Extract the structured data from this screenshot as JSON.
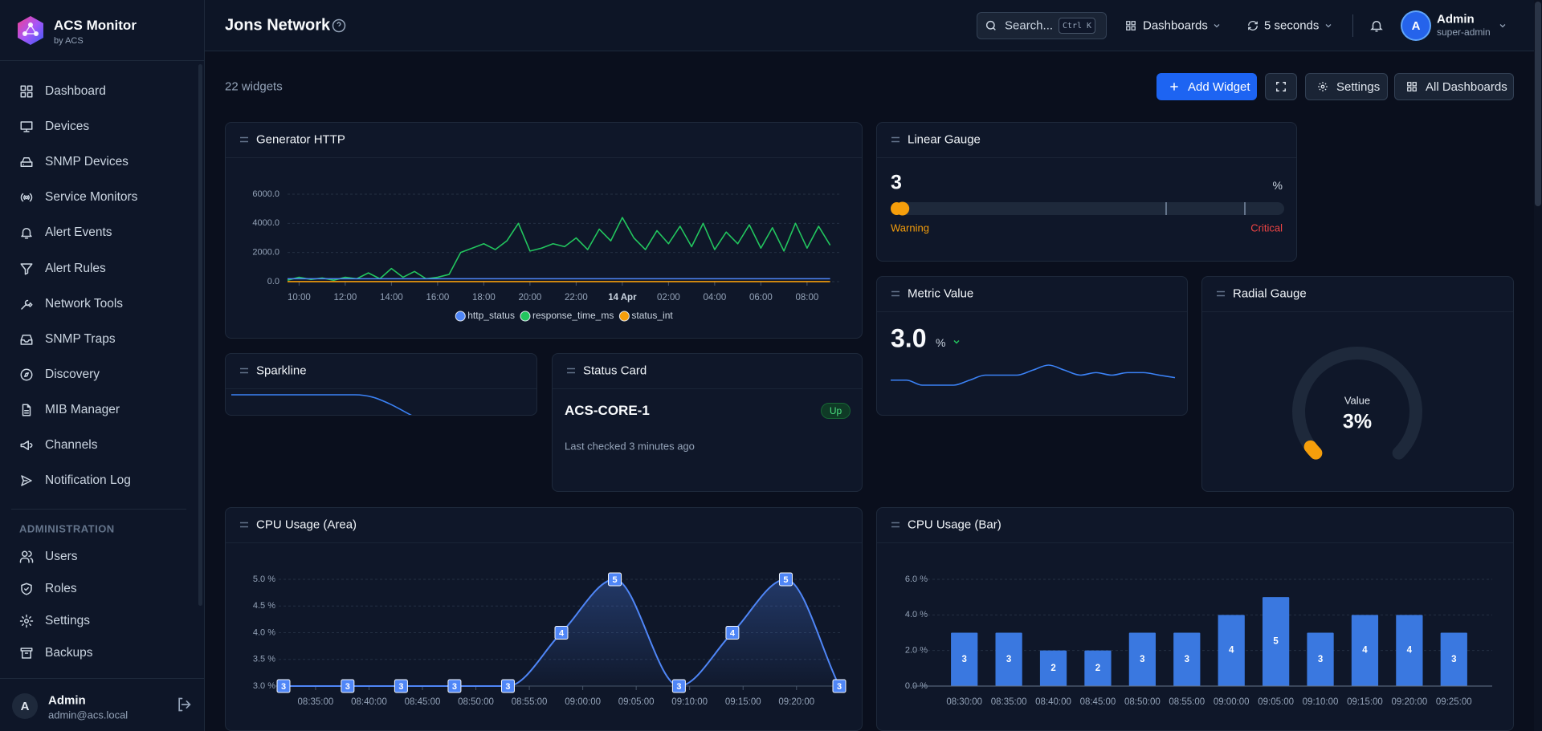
{
  "sidebar": {
    "brand": "ACS Monitor",
    "brand_sub": "by ACS",
    "nav": [
      "Dashboard",
      "Devices",
      "SNMP Devices",
      "Service Monitors",
      "Alert Events",
      "Alert Rules",
      "Network Tools",
      "SNMP Traps",
      "Discovery",
      "MIB Manager",
      "Channels",
      "Notification Log"
    ],
    "admin_heading": "ADMINISTRATION",
    "admin_nav": [
      "Users",
      "Roles",
      "Settings",
      "Backups"
    ],
    "user": {
      "initial": "A",
      "name": "Admin",
      "email": "admin@acs.local"
    }
  },
  "header": {
    "title": "Jons Network",
    "search": "Search...",
    "shortcut": "Ctrl K",
    "dashboards": "Dashboards",
    "refresh": "5 seconds",
    "user": {
      "initial": "A",
      "name": "Admin",
      "role": "super-admin"
    }
  },
  "toolbar": {
    "count": "22 widgets",
    "add": "Add Widget",
    "settings": "Settings",
    "all": "All Dashboards"
  },
  "chart_data": [
    {
      "type": "line",
      "title": "Generator HTTP",
      "x": [
        9.5,
        10,
        10.5,
        11,
        11.5,
        12,
        12.5,
        13,
        13.5,
        14,
        14.5,
        15,
        15.5,
        16,
        16.5,
        17,
        17.5,
        18,
        18.5,
        19,
        19.5,
        20,
        20.5,
        21,
        21.5,
        22,
        22.5,
        23,
        23.5,
        24,
        24.5,
        25,
        25.5,
        26,
        26.5,
        27,
        27.5,
        28,
        28.5,
        29,
        29.5,
        30,
        30.5,
        31,
        31.5,
        32,
        32.5,
        33
      ],
      "series": [
        {
          "name": "http_status",
          "color": "#4f86f7",
          "values": [
            200,
            200,
            200,
            200,
            200,
            200,
            200,
            200,
            200,
            200,
            200,
            200,
            200,
            200,
            200,
            200,
            200,
            200,
            200,
            200,
            200,
            200,
            200,
            200,
            200,
            200,
            200,
            200,
            200,
            200,
            200,
            200,
            200,
            200,
            200,
            200,
            200,
            200,
            200,
            200,
            200,
            200,
            200,
            200,
            200,
            200,
            200,
            200
          ]
        },
        {
          "name": "response_time_ms",
          "color": "#22c55e",
          "values": [
            100,
            300,
            150,
            250,
            100,
            300,
            200,
            600,
            200,
            900,
            300,
            700,
            200,
            300,
            500,
            2000,
            2300,
            2600,
            2200,
            2800,
            4000,
            2100,
            2300,
            2600,
            2400,
            3000,
            2200,
            3600,
            2800,
            4400,
            3000,
            2200,
            3500,
            2600,
            3800,
            2400,
            4000,
            2200,
            3400,
            2600,
            3900,
            2300,
            3700,
            2100,
            4000,
            2300,
            3800,
            2500
          ]
        },
        {
          "name": "status_int",
          "color": "#f59e0b",
          "values": [
            1,
            1,
            1,
            1,
            1,
            1,
            1,
            1,
            1,
            1,
            1,
            1,
            1,
            1,
            1,
            1,
            1,
            1,
            1,
            1,
            1,
            1,
            1,
            1,
            1,
            1,
            1,
            1,
            1,
            1,
            1,
            1,
            1,
            1,
            1,
            1,
            1,
            1,
            1,
            1,
            1,
            1,
            1,
            1,
            1,
            1,
            1,
            1
          ]
        }
      ],
      "xlim": [
        9.5,
        33.5
      ],
      "xticks": [
        {
          "value": 10,
          "label": "10:00"
        },
        {
          "value": 12,
          "label": "12:00"
        },
        {
          "value": 14,
          "label": "14:00"
        },
        {
          "value": 16,
          "label": "16:00"
        },
        {
          "value": 18,
          "label": "18:00"
        },
        {
          "value": 20,
          "label": "20:00"
        },
        {
          "value": 22,
          "label": "22:00"
        },
        {
          "value": 24,
          "label": "14 Apr"
        },
        {
          "value": 26,
          "label": "02:00"
        },
        {
          "value": 28,
          "label": "04:00"
        },
        {
          "value": 30,
          "label": "06:00"
        },
        {
          "value": 32,
          "label": "08:00"
        }
      ],
      "ylim": [
        0,
        6000
      ],
      "yticks": [
        {
          "value": 0,
          "label": "0.0"
        },
        {
          "value": 2000,
          "label": "2000.0"
        },
        {
          "value": 4000,
          "label": "4000.0"
        },
        {
          "value": 6000,
          "label": "6000.0"
        }
      ],
      "grid": true,
      "legend": "bottom"
    },
    {
      "type": "area",
      "title": "CPU Usage (Area)",
      "x": [
        32,
        38,
        43,
        48,
        53,
        58,
        63,
        69,
        74,
        79,
        84
      ],
      "values": [
        3,
        3,
        3,
        3,
        3,
        4,
        5,
        3,
        4,
        5,
        3
      ],
      "color": "#4f86f7",
      "xlim": [
        32,
        84
      ],
      "xticks": [
        {
          "value": 35,
          "label": "08:35:00"
        },
        {
          "value": 40,
          "label": "08:40:00"
        },
        {
          "value": 45,
          "label": "08:45:00"
        },
        {
          "value": 50,
          "label": "08:50:00"
        },
        {
          "value": 55,
          "label": "08:55:00"
        },
        {
          "value": 60,
          "label": "09:00:00"
        },
        {
          "value": 65,
          "label": "09:05:00"
        },
        {
          "value": 70,
          "label": "09:10:00"
        },
        {
          "value": 75,
          "label": "09:15:00"
        },
        {
          "value": 80,
          "label": "09:20:00"
        }
      ],
      "ylim": [
        3,
        5
      ],
      "yticks": [
        {
          "value": 3,
          "label": "3.0 %"
        },
        {
          "value": 3.5,
          "label": "3.5 %"
        },
        {
          "value": 4,
          "label": "4.0 %"
        },
        {
          "value": 4.5,
          "label": "4.5 %"
        },
        {
          "value": 5,
          "label": "5.0 %"
        }
      ],
      "grid": true
    },
    {
      "type": "bar",
      "title": "CPU Usage (Bar)",
      "categories": [
        "08:30:00",
        "08:35:00",
        "08:40:00",
        "08:45:00",
        "08:50:00",
        "08:55:00",
        "09:00:00",
        "09:05:00",
        "09:10:00",
        "09:15:00",
        "09:20:00",
        "09:25:00"
      ],
      "values": [
        3,
        3,
        2,
        2,
        3,
        3,
        4,
        5,
        3,
        4,
        4,
        3
      ],
      "color": "#3a78e0",
      "ylim": [
        0,
        6
      ],
      "yticks": [
        {
          "value": 0,
          "label": "0.0 %"
        },
        {
          "value": 2,
          "label": "2.0 %"
        },
        {
          "value": 4,
          "label": "4.0 %"
        },
        {
          "value": 6,
          "label": "6.0 %"
        }
      ],
      "grid": true
    }
  ],
  "linear_gauge": {
    "title": "Linear Gauge",
    "value": 3,
    "unit": "%",
    "min": 0,
    "max": 100,
    "thresholds": [
      70,
      90
    ],
    "low_label": "Warning",
    "high_label": "Critical"
  },
  "metric": {
    "title": "Metric Value",
    "value": "3.0",
    "unit": "%",
    "history": [
      2.9,
      2.9,
      2.8,
      2.8,
      2.8,
      2.9,
      3.0,
      3.0,
      3.0,
      3.1,
      3.2,
      3.1,
      3.0,
      3.05,
      3.0,
      3.05,
      3.05,
      3.0,
      2.95
    ]
  },
  "radial_gauge": {
    "title": "Radial Gauge",
    "label": "Value",
    "value": 3,
    "value_label": "3%",
    "min": 0,
    "max": 100
  },
  "sparkline": {
    "title": "Sparkline",
    "values": [
      4,
      4,
      4,
      4,
      4,
      4,
      4,
      4,
      3.9,
      3.6,
      3.2,
      2.8
    ]
  },
  "status_card": {
    "title": "Status Card",
    "name": "ACS-CORE-1",
    "status": "Up",
    "note": "Last checked 3 minutes ago"
  }
}
